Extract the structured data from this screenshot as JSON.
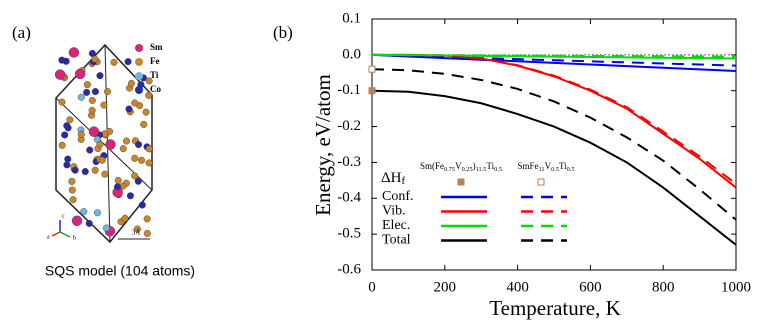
{
  "panel_a": {
    "label": "(a)",
    "legend": [
      "Sm",
      "Fe",
      "Ti",
      "Co"
    ],
    "legend_colors": [
      "#d6267a",
      "#c8862a",
      "#6fb6e6",
      "#2a2aa8"
    ],
    "scale": "3Å",
    "axes": [
      "a",
      "b",
      "c"
    ],
    "caption": "SQS model (104 atoms)"
  },
  "chart_data": {
    "type": "line",
    "panel_label": "(b)",
    "xlabel": "Temperature, K",
    "ylabel": "Energy, eV/atom",
    "xlim": [
      0,
      1000
    ],
    "ylim": [
      -0.6,
      0.1
    ],
    "xticks": [
      0,
      200,
      400,
      600,
      800,
      1000
    ],
    "yticks": [
      -0.6,
      -0.5,
      -0.4,
      -0.3,
      -0.2,
      -0.1,
      {
        "value": 0,
        "label": "0.0"
      },
      0.1
    ],
    "x": [
      0,
      100,
      200,
      300,
      400,
      500,
      600,
      700,
      800,
      900,
      1000
    ],
    "formation_label": [
      "ΔH",
      "f"
    ],
    "formation_color": "#b5835a",
    "components": [
      {
        "name": "Conf.",
        "color": "#0000ff"
      },
      {
        "name": "Vib.",
        "color": "#ff0000"
      },
      {
        "name": "Elec.",
        "color": "#00dd00"
      },
      {
        "name": "Total",
        "color": "#000000"
      }
    ],
    "compounds": [
      {
        "label": [
          "Sm(Fe",
          "0.75",
          "V",
          "0.25",
          ")",
          "11.5",
          "Ti",
          "0.5"
        ],
        "line_style": "solid",
        "marker": "filled",
        "formation_energy": -0.1,
        "series": [
          {
            "values": [
              0,
              -0.0045,
              -0.009,
              -0.0135,
              -0.018,
              -0.0225,
              -0.027,
              -0.0315,
              -0.036,
              -0.0405,
              -0.045
            ]
          },
          {
            "values": [
              0,
              0,
              -0.002,
              -0.01,
              -0.03,
              -0.06,
              -0.1,
              -0.15,
              -0.22,
              -0.29,
              -0.37
            ]
          },
          {
            "values": [
              0,
              -0.001,
              -0.002,
              -0.003,
              -0.004,
              -0.005,
              -0.006,
              -0.007,
              -0.008,
              -0.009,
              -0.01
            ]
          },
          {
            "values": [
              -0.1,
              -0.103,
              -0.115,
              -0.135,
              -0.165,
              -0.2,
              -0.245,
              -0.3,
              -0.37,
              -0.45,
              -0.53
            ]
          }
        ]
      },
      {
        "label": [
          "SmFe",
          "11",
          "V",
          "0.5",
          "Ti",
          "0.5"
        ],
        "line_style": "dashed",
        "marker": "open",
        "formation_energy": -0.04,
        "series": [
          {
            "values": [
              0,
              -0.003,
              -0.006,
              -0.009,
              -0.012,
              -0.015,
              -0.018,
              -0.021,
              -0.024,
              -0.027,
              -0.03
            ]
          },
          {
            "values": [
              0,
              0,
              -0.002,
              -0.01,
              -0.029,
              -0.058,
              -0.097,
              -0.146,
              -0.214,
              -0.283,
              -0.36
            ]
          },
          {
            "values": [
              0,
              -0.0005,
              -0.001,
              -0.0015,
              -0.002,
              -0.0025,
              -0.003,
              -0.0035,
              -0.004,
              -0.0045,
              -0.005
            ]
          },
          {
            "values": [
              -0.04,
              -0.043,
              -0.053,
              -0.07,
              -0.095,
              -0.13,
              -0.175,
              -0.23,
              -0.295,
              -0.375,
              -0.46
            ]
          }
        ]
      }
    ]
  }
}
